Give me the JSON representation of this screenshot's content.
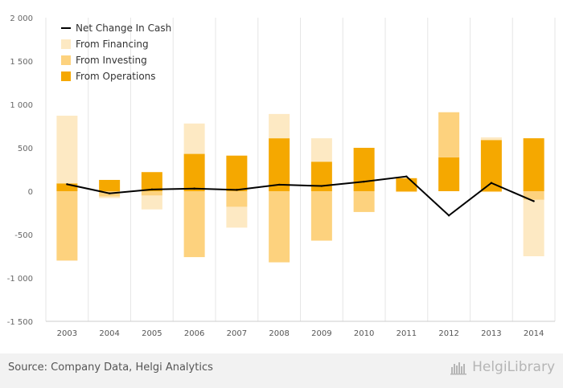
{
  "chart_data": {
    "type": "bar",
    "stacked": true,
    "categories": [
      "2003",
      "2004",
      "2005",
      "2006",
      "2007",
      "2008",
      "2009",
      "2010",
      "2011",
      "2012",
      "2013",
      "2014"
    ],
    "ylim": [
      -1500,
      2000
    ],
    "yticks": [
      2000,
      1500,
      1000,
      500,
      0,
      -500,
      -1000,
      -1500
    ],
    "ytick_labels": [
      "2 000",
      "1 500",
      "1 000",
      "500",
      "0",
      "-500",
      "-1 000",
      "-1 500"
    ],
    "series": [
      {
        "name": "From Financing",
        "type": "bar",
        "color": "#fde9c3",
        "values": [
          780,
          -20,
          -160,
          350,
          -240,
          280,
          270,
          0,
          0,
          0,
          30,
          -650
        ]
      },
      {
        "name": "From Investing",
        "type": "bar",
        "color": "#fdd27e",
        "values": [
          -800,
          -60,
          -50,
          -760,
          -180,
          -820,
          -570,
          -240,
          -10,
          520,
          -10,
          -100
        ]
      },
      {
        "name": "From Operations",
        "type": "bar",
        "color": "#f5a800",
        "values": [
          90,
          130,
          220,
          430,
          410,
          610,
          340,
          500,
          150,
          390,
          590,
          610
        ]
      },
      {
        "name": "Net Change In Cash",
        "type": "line",
        "color": "#000000",
        "values": [
          80,
          -25,
          20,
          30,
          15,
          75,
          60,
          110,
          170,
          -280,
          95,
          -115
        ]
      }
    ],
    "legend_position": "top-left",
    "grid": "vertical"
  },
  "legend": [
    {
      "label": "Net Change In Cash",
      "kind": "line",
      "color": "#000000"
    },
    {
      "label": "From Financing",
      "kind": "box",
      "color": "#fde9c3"
    },
    {
      "label": "From Investing",
      "kind": "box",
      "color": "#fdd27e"
    },
    {
      "label": "From Operations",
      "kind": "box",
      "color": "#f5a800"
    }
  ],
  "footer": {
    "source": "Source: Company Data, Helgi Analytics",
    "brand": "HelgiLibrary",
    "brand_icon": "helgi-library-icon"
  }
}
